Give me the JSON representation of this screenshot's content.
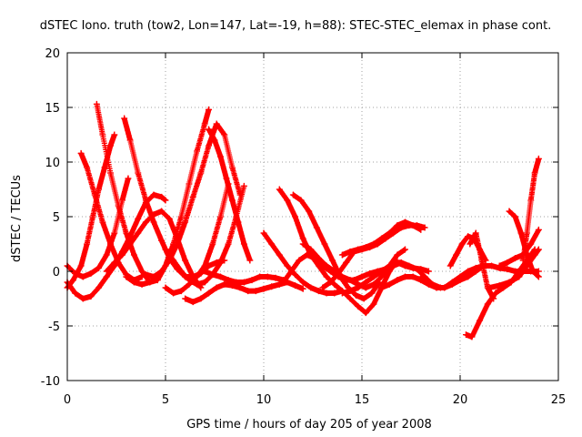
{
  "chart_data": {
    "type": "scatter",
    "title": "dSTEC Iono. truth (tow2, Lon=147, Lat=-19, h=88): STEC-STEC_elemax in phase cont.",
    "xlabel": "GPS time / hours of day 205 of year 2008",
    "ylabel": "dSTEC  / TECUs",
    "xlim": [
      0,
      25
    ],
    "ylim": [
      -10,
      20
    ],
    "xticks": [
      0,
      5,
      10,
      15,
      20,
      25
    ],
    "yticks": [
      -10,
      -5,
      0,
      5,
      10,
      15,
      20
    ],
    "xtick_labels": [
      "0",
      "5",
      "10",
      "15",
      "20",
      "25"
    ],
    "ytick_labels": [
      "-10",
      "-5",
      "0",
      "5",
      "10",
      "15",
      "20"
    ],
    "grid": true,
    "marker": "+",
    "color": "#ff0000",
    "series": [
      {
        "x": [
          0.0,
          0.3,
          0.7,
          1.0,
          1.3,
          1.6,
          1.9,
          2.2,
          2.4
        ],
        "y": [
          -1.5,
          -0.8,
          0.5,
          2.5,
          5.0,
          7.5,
          9.5,
          11.5,
          12.5
        ]
      },
      {
        "x": [
          1.5,
          1.8,
          2.2,
          2.6,
          3.0,
          3.4,
          3.8,
          4.2,
          4.6,
          5.0,
          5.3
        ],
        "y": [
          15.3,
          12.5,
          9.0,
          6.0,
          3.5,
          1.5,
          0.0,
          -1.0,
          -0.8,
          0.5,
          2.0
        ]
      },
      {
        "x": [
          0.0,
          0.4,
          0.8,
          1.2,
          1.6,
          2.0,
          2.4,
          2.8,
          3.1
        ],
        "y": [
          0.5,
          -0.2,
          -0.5,
          -0.2,
          0.3,
          1.5,
          3.5,
          6.5,
          8.5
        ]
      },
      {
        "x": [
          0.7,
          1.0,
          1.4,
          1.8,
          2.2,
          2.6,
          3.0,
          3.4,
          3.8
        ],
        "y": [
          10.8,
          9.5,
          7.0,
          4.5,
          2.5,
          0.8,
          -0.3,
          -0.8,
          -0.5
        ]
      },
      {
        "x": [
          2.9,
          3.2,
          3.6,
          4.0,
          4.4,
          4.8,
          5.2,
          5.6,
          6.0,
          6.4,
          6.8,
          7.2,
          7.6,
          8.0
        ],
        "y": [
          14.0,
          12.0,
          9.0,
          6.5,
          4.5,
          2.8,
          1.2,
          0.2,
          -0.5,
          -0.5,
          -0.2,
          0.5,
          0.8,
          1.0
        ]
      },
      {
        "x": [
          0.0,
          0.4,
          0.8,
          1.2,
          1.6,
          2.0,
          2.4,
          2.8,
          3.2,
          3.6,
          4.0,
          4.4,
          4.8,
          5.0
        ],
        "y": [
          -1.0,
          -2.0,
          -2.5,
          -2.3,
          -1.5,
          -0.5,
          0.5,
          1.8,
          3.2,
          4.8,
          6.3,
          7.0,
          6.8,
          6.5
        ]
      },
      {
        "x": [
          3.0,
          3.4,
          3.8,
          4.2,
          4.6,
          5.0,
          5.4,
          5.8,
          6.2,
          6.6,
          7.0,
          7.2
        ],
        "y": [
          -0.5,
          -1.0,
          -1.2,
          -1.0,
          -0.5,
          0.5,
          2.5,
          5.0,
          8.0,
          11.0,
          13.5,
          14.8
        ]
      },
      {
        "x": [
          2.0,
          2.4,
          2.8,
          3.2,
          3.6,
          4.0,
          4.4,
          4.8,
          5.2,
          5.6,
          6.0,
          6.4,
          6.8
        ],
        "y": [
          0.0,
          0.8,
          1.5,
          2.5,
          3.5,
          4.5,
          5.2,
          5.5,
          4.8,
          3.0,
          1.0,
          -0.5,
          -1.5
        ]
      },
      {
        "x": [
          4.0,
          4.4,
          4.8,
          5.2,
          5.6,
          6.0,
          6.4,
          6.8,
          7.2,
          7.6,
          8.0,
          8.4,
          8.8
        ],
        "y": [
          -0.3,
          -0.5,
          0.0,
          1.0,
          2.5,
          4.5,
          6.8,
          9.0,
          11.5,
          13.5,
          12.5,
          9.5,
          7.0
        ]
      },
      {
        "x": [
          7.2,
          7.5,
          7.8,
          8.1,
          8.4,
          8.7,
          9.0,
          9.3
        ],
        "y": [
          13.0,
          12.0,
          10.5,
          8.5,
          6.5,
          4.5,
          2.5,
          1.0
        ]
      },
      {
        "x": [
          5.0,
          5.4,
          5.8,
          6.2,
          6.6,
          7.0,
          7.4,
          7.8,
          8.2
        ],
        "y": [
          -1.5,
          -2.0,
          -1.8,
          -1.2,
          -0.5,
          0.5,
          2.5,
          5.0,
          8.0
        ]
      },
      {
        "x": [
          5.0,
          5.4,
          5.8,
          6.2,
          6.6,
          7.0,
          7.4,
          7.8,
          8.2,
          8.6,
          9.0
        ],
        "y": [
          2.0,
          1.0,
          0.0,
          -0.8,
          -1.2,
          -1.0,
          -0.3,
          0.8,
          2.5,
          5.0,
          7.8
        ]
      },
      {
        "x": [
          6.0,
          6.4,
          6.8,
          7.2,
          7.6,
          8.0,
          8.4,
          8.8,
          9.2,
          9.6,
          10.0,
          10.4,
          10.8,
          11.2,
          11.6,
          12.0
        ],
        "y": [
          -2.5,
          -2.8,
          -2.5,
          -2.0,
          -1.5,
          -1.2,
          -1.3,
          -1.5,
          -1.8,
          -1.8,
          -1.6,
          -1.4,
          -1.2,
          -1.0,
          -1.3,
          -1.6
        ]
      },
      {
        "x": [
          7.0,
          7.4,
          7.8,
          8.2,
          8.6,
          9.0,
          9.4,
          9.8,
          10.2,
          10.6,
          11.0
        ],
        "y": [
          0.0,
          -0.3,
          -0.5,
          -0.8,
          -1.0,
          -1.0,
          -0.8,
          -0.5,
          -0.5,
          -0.6,
          -0.8
        ]
      },
      {
        "x": [
          10.0,
          10.4,
          10.8,
          11.2,
          11.6,
          12.0,
          12.4,
          12.8,
          13.2,
          13.6,
          14.0
        ],
        "y": [
          3.5,
          2.5,
          1.5,
          0.5,
          -0.3,
          -1.0,
          -1.5,
          -1.8,
          -2.0,
          -2.0,
          -1.8
        ]
      },
      {
        "x": [
          10.8,
          11.2,
          11.6,
          12.0,
          12.4,
          12.8,
          13.2,
          13.6,
          14.0,
          14.4,
          14.8,
          15.2,
          15.6,
          16.0,
          16.4,
          16.8
        ],
        "y": [
          7.5,
          6.5,
          5.0,
          3.0,
          1.5,
          0.5,
          -0.5,
          -1.2,
          -1.8,
          -2.5,
          -3.2,
          -3.8,
          -3.0,
          -1.5,
          0.0,
          1.0
        ]
      },
      {
        "x": [
          11.5,
          11.9,
          12.3,
          12.7,
          13.1,
          13.5,
          13.9,
          14.3,
          14.7,
          15.1,
          15.5,
          15.9
        ],
        "y": [
          7.0,
          6.5,
          5.5,
          4.0,
          2.5,
          1.0,
          -0.5,
          -1.5,
          -2.2,
          -2.5,
          -2.0,
          -1.0
        ]
      },
      {
        "x": [
          11.0,
          11.4,
          11.8,
          12.2,
          12.6,
          13.0,
          13.4,
          13.8,
          14.2,
          14.6,
          15.0
        ],
        "y": [
          -1.0,
          0.0,
          1.0,
          1.5,
          1.2,
          0.5,
          0.0,
          -0.5,
          -0.8,
          -0.8,
          -0.5
        ]
      },
      {
        "x": [
          12.0,
          12.4,
          12.8,
          13.2,
          13.6,
          14.0,
          14.4,
          14.8,
          15.2,
          15.6,
          16.0,
          16.4,
          16.8,
          17.2
        ],
        "y": [
          2.5,
          2.0,
          1.2,
          0.5,
          0.0,
          -0.5,
          -0.8,
          -1.2,
          -1.5,
          -1.2,
          -0.5,
          0.5,
          1.5,
          2.0
        ]
      },
      {
        "x": [
          13.0,
          13.4,
          13.8,
          14.2,
          14.6,
          15.0,
          15.4,
          15.8,
          16.2,
          16.6,
          17.0,
          17.4,
          17.8,
          18.2
        ],
        "y": [
          -1.5,
          -1.0,
          -0.2,
          0.8,
          1.8,
          2.0,
          2.2,
          2.5,
          3.0,
          3.5,
          4.0,
          4.2,
          4.2,
          4.0
        ]
      },
      {
        "x": [
          14.0,
          14.4,
          14.8,
          15.2,
          15.6,
          16.0,
          16.4,
          16.8,
          17.2,
          17.6,
          18.0
        ],
        "y": [
          1.5,
          1.8,
          2.0,
          2.2,
          2.5,
          3.0,
          3.5,
          4.2,
          4.5,
          4.2,
          3.8
        ]
      },
      {
        "x": [
          14.0,
          14.4,
          14.8,
          15.2,
          15.6,
          16.0,
          16.4,
          16.8,
          17.2,
          17.6,
          18.0,
          18.4
        ],
        "y": [
          -2.0,
          -1.8,
          -1.5,
          -1.0,
          -0.5,
          0.0,
          0.5,
          0.8,
          0.5,
          0.3,
          0.2,
          0.0
        ]
      },
      {
        "x": [
          15.0,
          15.4,
          15.8,
          16.2,
          16.6,
          17.0,
          17.4,
          17.8,
          18.2,
          18.6,
          19.0
        ],
        "y": [
          -0.5,
          -0.2,
          0.0,
          0.2,
          0.5,
          0.8,
          0.5,
          0.2,
          -0.5,
          -1.2,
          -1.5
        ]
      },
      {
        "x": [
          16.0,
          16.4,
          16.8,
          17.2,
          17.6,
          18.0,
          18.4,
          18.8,
          19.2,
          19.6,
          20.0,
          20.4,
          20.8,
          21.2
        ],
        "y": [
          -1.5,
          -1.2,
          -0.8,
          -0.5,
          -0.5,
          -0.8,
          -1.2,
          -1.5,
          -1.5,
          -1.2,
          -0.8,
          -0.5,
          0.0,
          0.5
        ]
      },
      {
        "x": [
          18.0,
          18.4,
          18.8,
          19.2,
          19.6,
          20.0,
          20.4,
          20.8,
          21.2,
          21.6,
          22.0,
          22.4,
          22.8,
          23.2,
          23.6,
          24.0
        ],
        "y": [
          -0.5,
          -1.0,
          -1.5,
          -1.5,
          -1.0,
          -0.5,
          0.0,
          0.3,
          0.5,
          0.5,
          0.3,
          0.2,
          0.0,
          0.0,
          0.0,
          0.0
        ]
      },
      {
        "x": [
          19.5,
          19.8,
          20.1,
          20.4,
          20.7,
          21.0,
          21.3
        ],
        "y": [
          0.5,
          1.5,
          2.5,
          3.2,
          3.0,
          2.0,
          1.0
        ]
      },
      {
        "x": [
          20.3,
          20.6,
          21.0,
          21.4,
          21.8,
          22.2,
          22.6,
          23.0,
          23.4,
          23.8
        ],
        "y": [
          -5.8,
          -6.0,
          -4.5,
          -3.0,
          -2.0,
          -1.5,
          -1.0,
          0.0,
          1.0,
          2.0
        ]
      },
      {
        "x": [
          20.5,
          20.8,
          21.1,
          21.4,
          21.7
        ],
        "y": [
          2.5,
          3.5,
          1.0,
          -1.5,
          -2.5
        ]
      },
      {
        "x": [
          22.5,
          22.8,
          23.1,
          23.4,
          23.7,
          24.0
        ],
        "y": [
          5.5,
          5.0,
          3.5,
          1.5,
          0.0,
          -0.5
        ]
      },
      {
        "x": [
          21.5,
          22.0,
          22.5,
          23.0,
          23.4,
          23.8,
          24.0
        ],
        "y": [
          -1.5,
          -1.3,
          -1.0,
          -0.5,
          0.5,
          1.5,
          2.0
        ]
      },
      {
        "x": [
          23.2,
          23.4,
          23.6,
          23.8,
          24.0
        ],
        "y": [
          1.0,
          3.5,
          6.5,
          9.0,
          10.3
        ]
      },
      {
        "x": [
          22.0,
          22.4,
          22.8,
          23.2,
          23.6,
          24.0
        ],
        "y": [
          0.5,
          0.8,
          1.2,
          1.5,
          2.5,
          3.8
        ]
      }
    ]
  }
}
